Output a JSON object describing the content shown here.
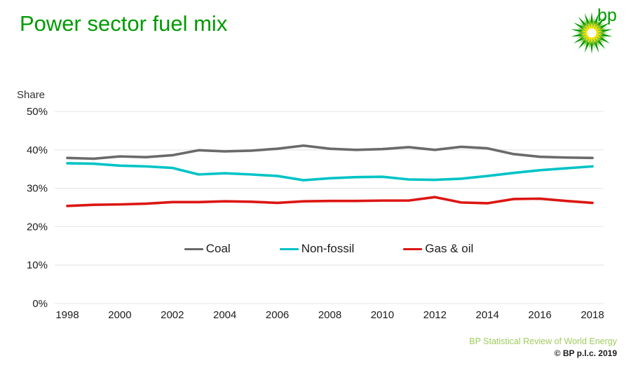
{
  "header": {
    "title": "Power sector fuel mix",
    "logo_text": "bp"
  },
  "logo": {
    "petal_green": "#009b00",
    "petal_light_green": "#8dc63f",
    "petal_yellow": "#ffe600",
    "petal_center": "#ffffff"
  },
  "chart_data": {
    "type": "line",
    "title": "Power sector fuel mix",
    "ylabel": "Share",
    "xlabel": "",
    "ylim": [
      0,
      50
    ],
    "grid": true,
    "gridline_color": "#e9e9e9",
    "legend_position": "inside-center",
    "ytick_values": [
      0,
      10,
      20,
      30,
      40,
      50
    ],
    "ytick_labels": [
      "0%",
      "10%",
      "20%",
      "30%",
      "40%",
      "50%"
    ],
    "xticks": [
      1998,
      2000,
      2002,
      2004,
      2006,
      2008,
      2010,
      2012,
      2014,
      2016,
      2018
    ],
    "x": [
      1998,
      1999,
      2000,
      2001,
      2002,
      2003,
      2004,
      2005,
      2006,
      2007,
      2008,
      2009,
      2010,
      2011,
      2012,
      2013,
      2014,
      2015,
      2016,
      2017,
      2018
    ],
    "series": [
      {
        "name": "Coal",
        "color": "#6a6a6a",
        "values": [
          37.9,
          37.7,
          38.3,
          38.1,
          38.6,
          39.9,
          39.6,
          39.8,
          40.3,
          41.1,
          40.3,
          40.0,
          40.2,
          40.7,
          40.0,
          40.8,
          40.4,
          38.9,
          38.2,
          38.0,
          37.9
        ]
      },
      {
        "name": "Non-fossil",
        "color": "#00c3c6",
        "values": [
          36.5,
          36.4,
          35.9,
          35.7,
          35.3,
          33.6,
          33.9,
          33.6,
          33.2,
          32.1,
          32.6,
          32.9,
          33.0,
          32.3,
          32.2,
          32.5,
          33.2,
          34.0,
          34.7,
          35.2,
          35.7
        ]
      },
      {
        "name": "Gas & oil",
        "color": "#dc1613",
        "values": [
          25.4,
          25.7,
          25.8,
          26.0,
          26.4,
          26.4,
          26.6,
          26.5,
          26.2,
          26.6,
          26.7,
          26.7,
          26.8,
          26.8,
          27.7,
          26.3,
          26.1,
          27.2,
          27.3,
          26.7,
          26.2
        ]
      }
    ]
  },
  "footer": {
    "source": "BP Statistical Review of World Energy",
    "copyright": "© BP p.l.c. 2019"
  }
}
